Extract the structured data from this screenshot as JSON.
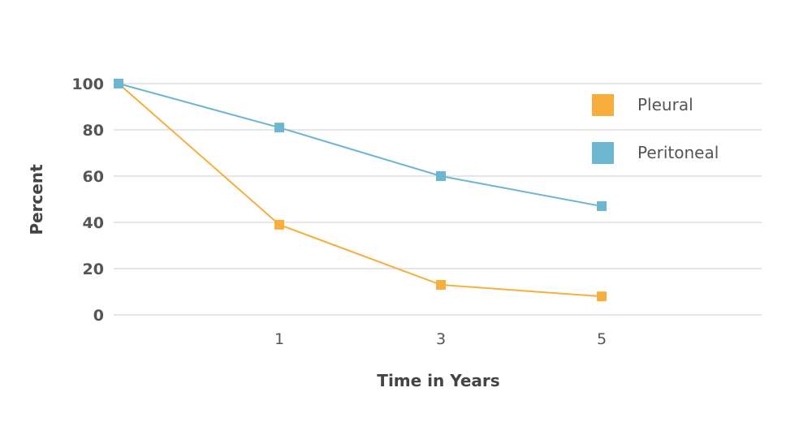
{
  "chart_data": {
    "type": "line",
    "x": [
      0,
      1,
      3,
      5
    ],
    "x_tick_labels": [
      "1",
      "3",
      "5"
    ],
    "x_tick_values": [
      1,
      3,
      5
    ],
    "y_tick_labels": [
      "0",
      "20",
      "40",
      "60",
      "80",
      "100"
    ],
    "y_tick_values": [
      0,
      20,
      40,
      60,
      80,
      100
    ],
    "xlabel": "Time in Years",
    "ylabel": "Percent",
    "ylim": [
      0,
      100
    ],
    "grid": true,
    "legend_position": "top-right",
    "series": [
      {
        "name": "Pleural",
        "color": "#f7ae3c",
        "values": [
          100,
          39,
          13,
          8
        ]
      },
      {
        "name": "Peritoneal",
        "color": "#6cb6cf",
        "values": [
          100,
          81,
          60,
          47
        ]
      }
    ]
  }
}
